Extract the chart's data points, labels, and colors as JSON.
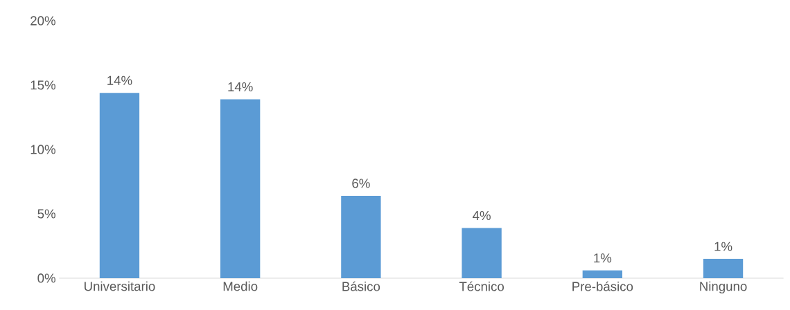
{
  "chart_data": {
    "type": "bar",
    "categories": [
      "Universitario",
      "Medio",
      "Básico",
      "Técnico",
      "Pre-básico",
      "Ninguno"
    ],
    "values": [
      14.4,
      13.9,
      6.4,
      3.9,
      0.6,
      1.5
    ],
    "value_labels": [
      "14%",
      "14%",
      "6%",
      "4%",
      "1%",
      "1%"
    ],
    "color": "#5b9bd5",
    "ylim": [
      0,
      20
    ],
    "yticks": [
      {
        "value": 0,
        "label": "0%"
      },
      {
        "value": 5,
        "label": "5%"
      },
      {
        "value": 10,
        "label": "10%"
      },
      {
        "value": 15,
        "label": "15%"
      },
      {
        "value": 20,
        "label": "20%"
      }
    ]
  }
}
